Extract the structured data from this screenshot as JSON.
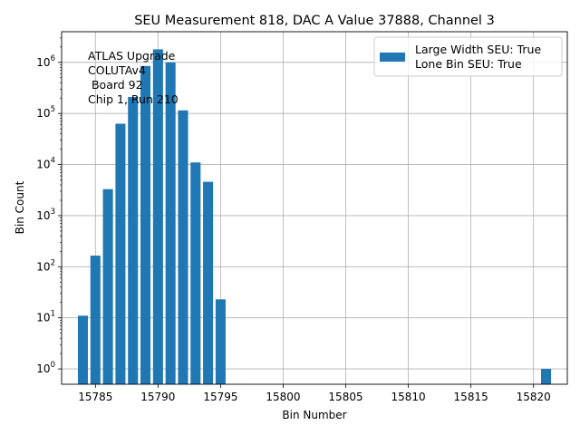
{
  "chart_data": {
    "type": "bar",
    "title": "SEU Measurement 818, DAC A Value 37888, Channel 3",
    "xlabel": "Bin Number",
    "ylabel": "Bin Count",
    "y_scale": "log",
    "grid": true,
    "legend_position": "top-right",
    "bar_color": "#1f77b4",
    "xlim": [
      15782.3,
      15822.7
    ],
    "ylim_exponent": [
      -0.3,
      6.6
    ],
    "x_ticks": [
      "15785",
      "15790",
      "15795",
      "15800",
      "15805",
      "15810",
      "15815",
      "15820"
    ],
    "x_tick_values": [
      15785,
      15790,
      15795,
      15800,
      15805,
      15810,
      15815,
      15820
    ],
    "y_tick_exponents": [
      0,
      1,
      2,
      3,
      4,
      5,
      6
    ],
    "annotation": [
      "ATLAS Upgrade",
      "COLUTAv4",
      " Board 92",
      "Chip 1, Run 210"
    ],
    "legend": {
      "label_line1": "Large Width SEU: True",
      "label_line2": "Lone Bin SEU: True"
    },
    "x": [
      15784,
      15785,
      15786,
      15787,
      15788,
      15789,
      15790,
      15791,
      15792,
      15793,
      15794,
      15795,
      15821
    ],
    "values": [
      11,
      165,
      3300,
      63000,
      210000,
      850000,
      1800000,
      1000000,
      115000,
      11000,
      4600,
      23,
      1
    ]
  }
}
